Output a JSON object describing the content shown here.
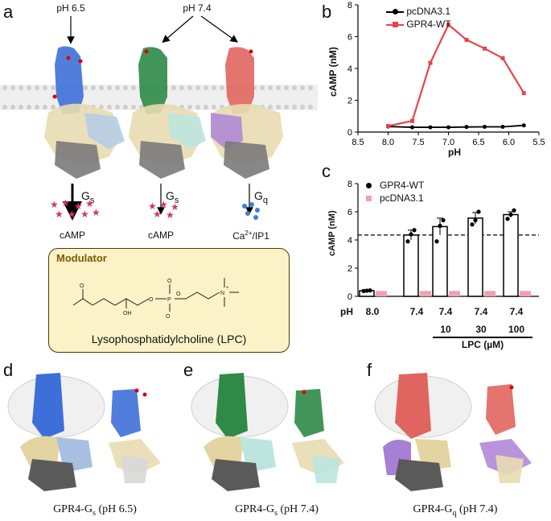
{
  "panels": {
    "a": "a",
    "b": "b",
    "c": "c",
    "d": "d",
    "e": "e",
    "f": "f"
  },
  "panel_a": {
    "ph_left": "pH 6.5",
    "ph_right": "pH 7.4",
    "gprotein_1": "G",
    "gprotein_1_sub": "s",
    "gprotein_2": "G",
    "gprotein_2_sub": "s",
    "gprotein_3": "G",
    "gprotein_3_sub": "q",
    "product_1": "cAMP",
    "product_2": "cAMP",
    "product_3": "Ca",
    "product_3_sup": "2+",
    "product_3_rest": "/IP1",
    "modulator_title": "Modulator",
    "modulator_name": "Lysophosphatidylcholine (LPC)",
    "colors": {
      "gs_65": "#3e6fd8",
      "gs_74": "#2e8a46",
      "gq_74": "#e0655e",
      "camp_star": "#d6336c",
      "ca_dot": "#3d7fd6",
      "membrane": "#d9d9d9"
    }
  },
  "panel_b": {
    "ylabel": "cAMP (nM)",
    "xlabel": "pH"
  },
  "panel_c": {
    "ylabel": "cAMP (nM)",
    "ph_label": "pH",
    "ph_values": [
      "8.0",
      "7.4",
      "7.4",
      "7.4",
      "7.4"
    ],
    "lpc_values": [
      "10",
      "30",
      "100"
    ],
    "lpc_label": "LPC (µM)"
  },
  "chart_data": [
    {
      "type": "line",
      "panel": "b",
      "xlabel": "pH",
      "ylabel": "cAMP (nM)",
      "x_reversed": true,
      "xlim": [
        8.5,
        5.5
      ],
      "ylim": [
        0,
        8
      ],
      "xticks": [
        "8.5",
        "8.0",
        "7.5",
        "7.0",
        "6.5",
        "6.0",
        "5.5"
      ],
      "yticks": [
        "0",
        "2",
        "4",
        "6",
        "8"
      ],
      "legend_position": "top-left",
      "x": [
        8.0,
        7.6,
        7.3,
        7.0,
        6.7,
        6.4,
        6.1,
        5.75
      ],
      "series": [
        {
          "name": "pcDNA3.1",
          "color": "#000000",
          "values": [
            0.35,
            0.3,
            0.3,
            0.3,
            0.32,
            0.33,
            0.33,
            0.42
          ]
        },
        {
          "name": "GPR4-WT",
          "color": "#e8434a",
          "values": [
            0.38,
            0.7,
            4.35,
            6.75,
            5.8,
            5.25,
            4.65,
            2.45
          ]
        }
      ]
    },
    {
      "type": "bar",
      "panel": "c",
      "ylabel": "cAMP (nM)",
      "ylim": [
        0,
        8
      ],
      "yticks": [
        "0",
        "2",
        "4",
        "6",
        "8"
      ],
      "reference_line": 4.35,
      "legend_position": "top-left",
      "categories": [
        "pH 8.0",
        "pH 7.4",
        "pH 7.4 + LPC 10 µM",
        "pH 7.4 + LPC 30 µM",
        "pH 7.4 + LPC 100 µM"
      ],
      "series": [
        {
          "name": "GPR4-WT",
          "color": "#000000",
          "values": [
            0.4,
            4.35,
            4.95,
            5.55,
            5.8
          ],
          "errors": [
            0.05,
            0.35,
            0.6,
            0.4,
            0.2
          ],
          "points": [
            [
              0.38,
              0.4,
              0.42
            ],
            [
              3.9,
              4.4,
              4.7
            ],
            [
              3.9,
              5.0,
              5.4
            ],
            [
              5.1,
              5.4,
              6.0
            ],
            [
              5.5,
              5.8,
              6.1
            ]
          ]
        },
        {
          "name": "pcDNA3.1",
          "color": "#f2a0b3",
          "values": [
            0.38,
            0.38,
            0.38,
            0.38,
            0.38
          ],
          "errors": [
            0.03,
            0.04,
            0.04,
            0.03,
            0.03
          ]
        }
      ]
    }
  ],
  "legend_b": {
    "s1": "pcDNA3.1",
    "s2": "GPR4-WT"
  },
  "legend_c": {
    "s1": "GPR4-WT",
    "s2": "pcDNA3.1"
  },
  "captions": {
    "d_main": "GPR4-G",
    "d_sub": "s",
    "d_tail": " (pH 6.5)",
    "e_main": "GPR4-G",
    "e_sub": "s",
    "e_tail": " (pH 7.4)",
    "f_main": "GPR4-G",
    "f_sub": "q",
    "f_tail": " (pH 7.4)"
  }
}
